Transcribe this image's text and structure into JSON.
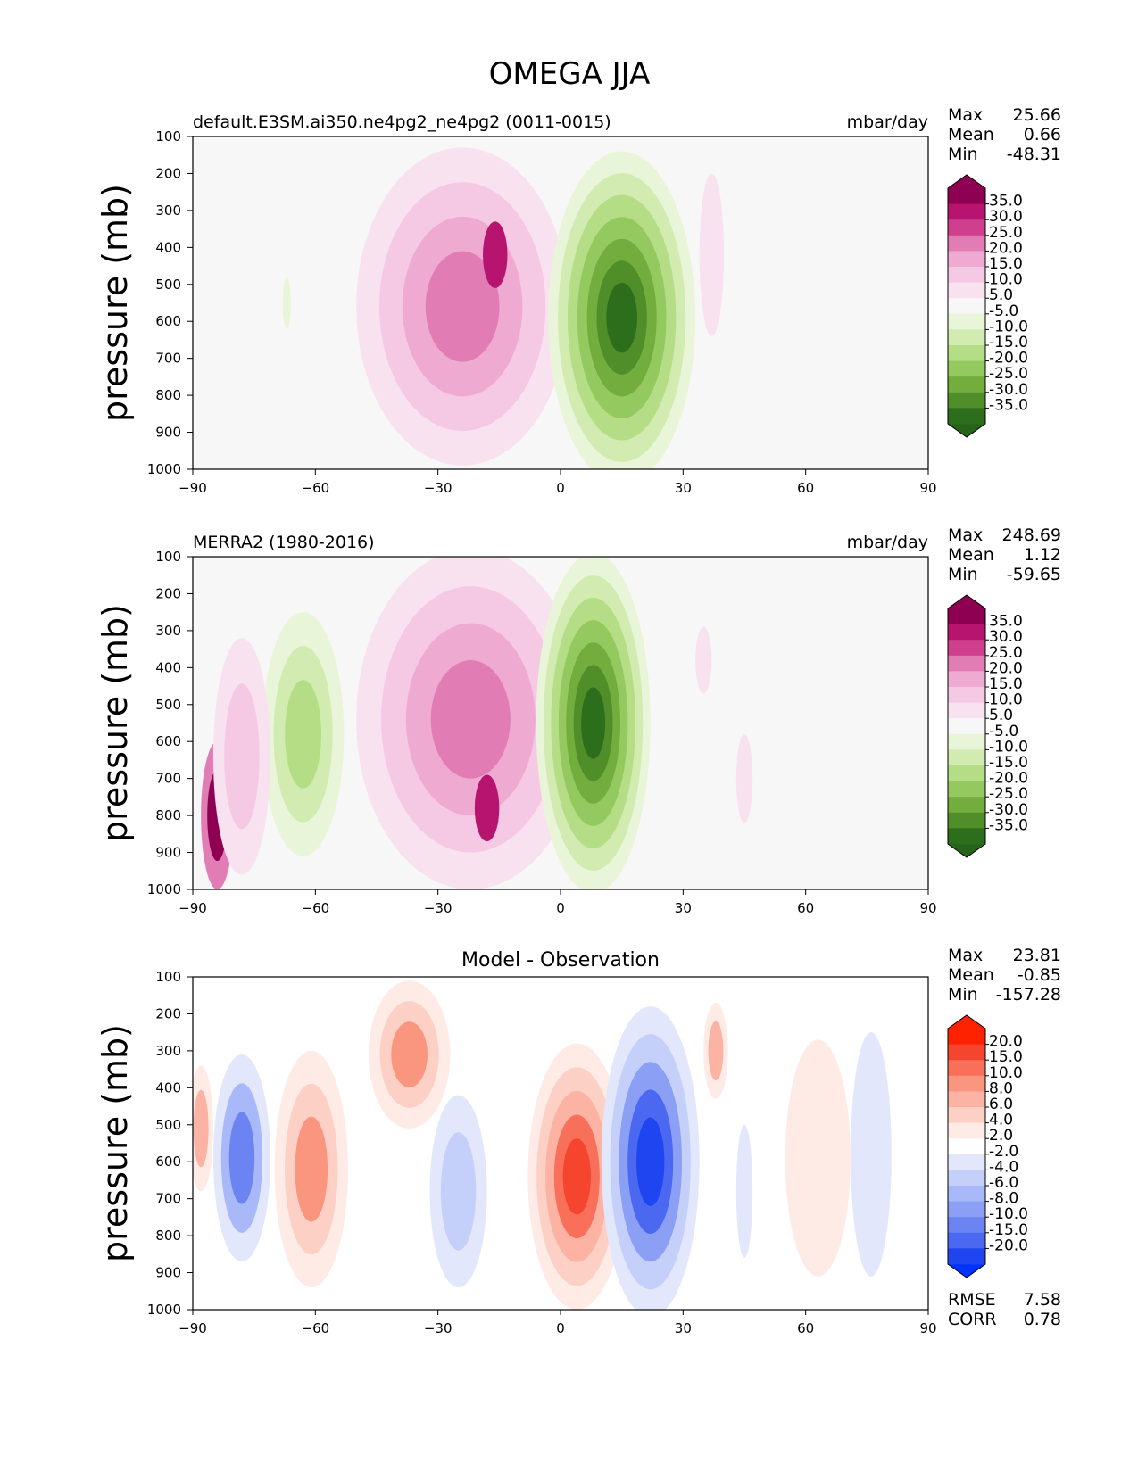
{
  "figure_title": "OMEGA JJA",
  "chart_data": [
    {
      "type": "contour",
      "title": "default.E3SM.ai350.ne4pg2_ne4pg2 (0011-0015)",
      "units": "mbar/day",
      "xlabel": "",
      "ylabel": "pressure (mb)",
      "xlim": [
        -90,
        90
      ],
      "ylim": [
        1000,
        100
      ],
      "xticks": [
        -90,
        -60,
        -30,
        0,
        30,
        60,
        90
      ],
      "yticks": [
        100,
        200,
        300,
        400,
        500,
        600,
        700,
        800,
        900,
        1000
      ],
      "stats": [
        {
          "label": "Max",
          "value": "25.66"
        },
        {
          "label": "Mean",
          "value": "0.66"
        },
        {
          "label": "Min",
          "value": "-48.31"
        }
      ],
      "colorbar": {
        "labels": [
          "35.0",
          "30.0",
          "25.0",
          "20.0",
          "15.0",
          "10.0",
          "5.0",
          "-5.0",
          "-10.0",
          "-15.0",
          "-20.0",
          "-25.0",
          "-30.0",
          "-35.0"
        ],
        "colors": [
          "#8e0152",
          "#b7146f",
          "#d03f8d",
          "#e27cb4",
          "#efaad2",
          "#f5c9e4",
          "#f9e2f0",
          "#f7f7f7",
          "#e9f5d8",
          "#d1ebb1",
          "#b4dd86",
          "#93c95e",
          "#72ad3e",
          "#508e2a",
          "#2d6e1c"
        ],
        "top_color": "#8e0152",
        "bottom_color": "#276419"
      },
      "blobs": [
        {
          "x": -24,
          "p": 560,
          "rx": 26,
          "rp": 430,
          "levels": [
            5,
            10,
            15,
            20
          ]
        },
        {
          "x": -16,
          "p": 420,
          "rx": 3,
          "rp": 90,
          "levels": [
            30
          ]
        },
        {
          "x": 15,
          "p": 590,
          "rx": 18,
          "rp": 450,
          "levels": [
            -5,
            -10,
            -15,
            -20,
            -25,
            -30,
            -35
          ]
        },
        {
          "x": 37,
          "p": 420,
          "rx": 3,
          "rp": 220,
          "levels": [
            5
          ]
        },
        {
          "x": -67,
          "p": 550,
          "rx": 1,
          "rp": 70,
          "levels": [
            -5
          ]
        }
      ]
    },
    {
      "type": "contour",
      "title": "MERRA2 (1980-2016)",
      "units": "mbar/day",
      "xlabel": "",
      "ylabel": "pressure (mb)",
      "xlim": [
        -90,
        90
      ],
      "ylim": [
        1000,
        100
      ],
      "xticks": [
        -90,
        -60,
        -30,
        0,
        30,
        60,
        90
      ],
      "yticks": [
        100,
        200,
        300,
        400,
        500,
        600,
        700,
        800,
        900,
        1000
      ],
      "stats": [
        {
          "label": "Max",
          "value": "248.69"
        },
        {
          "label": "Mean",
          "value": "1.12"
        },
        {
          "label": "Min",
          "value": "-59.65"
        }
      ],
      "colorbar": {
        "labels": [
          "35.0",
          "30.0",
          "25.0",
          "20.0",
          "15.0",
          "10.0",
          "5.0",
          "-5.0",
          "-10.0",
          "-15.0",
          "-20.0",
          "-25.0",
          "-30.0",
          "-35.0"
        ],
        "colors": [
          "#8e0152",
          "#b7146f",
          "#d03f8d",
          "#e27cb4",
          "#efaad2",
          "#f5c9e4",
          "#f9e2f0",
          "#f7f7f7",
          "#e9f5d8",
          "#d1ebb1",
          "#b4dd86",
          "#93c95e",
          "#72ad3e",
          "#508e2a",
          "#2d6e1c"
        ],
        "top_color": "#8e0152",
        "bottom_color": "#276419"
      },
      "blobs": [
        {
          "x": -22,
          "p": 540,
          "rx": 28,
          "rp": 460,
          "levels": [
            5,
            10,
            15,
            20
          ]
        },
        {
          "x": -18,
          "p": 780,
          "rx": 3,
          "rp": 90,
          "levels": [
            30
          ]
        },
        {
          "x": 8,
          "p": 550,
          "rx": 14,
          "rp": 460,
          "levels": [
            -5,
            -10,
            -15,
            -20,
            -25,
            -30,
            -35
          ]
        },
        {
          "x": -63,
          "p": 580,
          "rx": 10,
          "rp": 330,
          "levels": [
            -5,
            -10,
            -15
          ]
        },
        {
          "x": -84,
          "p": 800,
          "rx": 4,
          "rp": 200,
          "levels": [
            20,
            35
          ]
        },
        {
          "x": -78,
          "p": 640,
          "rx": 7,
          "rp": 320,
          "levels": [
            5,
            10
          ]
        },
        {
          "x": 35,
          "p": 380,
          "rx": 2,
          "rp": 90,
          "levels": [
            5
          ]
        },
        {
          "x": 45,
          "p": 700,
          "rx": 2,
          "rp": 120,
          "levels": [
            5
          ]
        }
      ]
    },
    {
      "type": "contour",
      "title": "Model - Observation",
      "units": "",
      "xlabel": "",
      "ylabel": "pressure (mb)",
      "xlim": [
        -90,
        90
      ],
      "ylim": [
        1000,
        100
      ],
      "xticks": [
        -90,
        -60,
        -30,
        0,
        30,
        60,
        90
      ],
      "yticks": [
        100,
        200,
        300,
        400,
        500,
        600,
        700,
        800,
        900,
        1000
      ],
      "stats": [
        {
          "label": "Max",
          "value": "23.81"
        },
        {
          "label": "Mean",
          "value": "-0.85"
        },
        {
          "label": "Min",
          "value": "-157.28"
        }
      ],
      "metrics": [
        {
          "label": "RMSE",
          "value": "7.58"
        },
        {
          "label": "CORR",
          "value": "0.78"
        }
      ],
      "colorbar": {
        "labels": [
          "20.0",
          "15.0",
          "10.0",
          "8.0",
          "6.0",
          "4.0",
          "2.0",
          "-2.0",
          "-4.0",
          "-6.0",
          "-8.0",
          "-10.0",
          "-15.0",
          "-20.0"
        ],
        "colors": [
          "#ff2200",
          "#f5452f",
          "#f8705a",
          "#fa9580",
          "#fcb3a3",
          "#fdd0c6",
          "#feebe6",
          "#ffffff",
          "#e2e7fb",
          "#c5d0fa",
          "#a8b8f8",
          "#8ba0f5",
          "#6b84f2",
          "#4a68f0",
          "#1f45f0"
        ],
        "top_color": "#ff2200",
        "bottom_color": "#0033ff"
      },
      "blobs": [
        {
          "x": 4,
          "p": 640,
          "rx": 12,
          "rp": 360,
          "levels": [
            2,
            4,
            6,
            10,
            15
          ]
        },
        {
          "x": 22,
          "p": 600,
          "rx": 12,
          "rp": 420,
          "levels": [
            -2,
            -4,
            -8,
            -15,
            -20
          ]
        },
        {
          "x": -61,
          "p": 620,
          "rx": 9,
          "rp": 320,
          "levels": [
            2,
            4,
            8
          ]
        },
        {
          "x": -37,
          "p": 310,
          "rx": 10,
          "rp": 200,
          "levels": [
            2,
            4,
            8
          ]
        },
        {
          "x": -25,
          "p": 680,
          "rx": 7,
          "rp": 260,
          "levels": [
            -2,
            -4
          ]
        },
        {
          "x": -78,
          "p": 590,
          "rx": 7,
          "rp": 280,
          "levels": [
            -2,
            -6,
            -10
          ]
        },
        {
          "x": 38,
          "p": 300,
          "rx": 3,
          "rp": 130,
          "levels": [
            2,
            6
          ]
        },
        {
          "x": 63,
          "p": 590,
          "rx": 8,
          "rp": 320,
          "levels": [
            2
          ]
        },
        {
          "x": 76,
          "p": 580,
          "rx": 5,
          "rp": 330,
          "levels": [
            -2
          ]
        },
        {
          "x": -88,
          "p": 510,
          "rx": 3,
          "rp": 170,
          "levels": [
            2,
            6
          ]
        },
        {
          "x": 45,
          "p": 680,
          "rx": 2,
          "rp": 180,
          "levels": [
            -2
          ]
        }
      ]
    }
  ]
}
